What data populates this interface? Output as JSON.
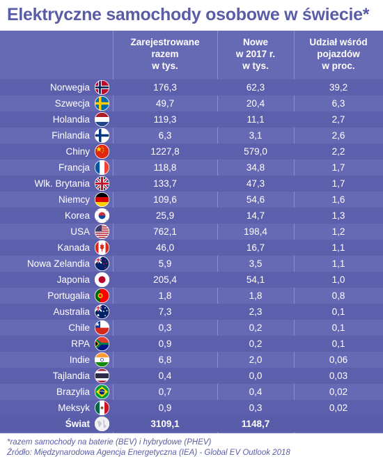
{
  "title": "Elektryczne samochody osobowe w świecie*",
  "chart_data": {
    "type": "table",
    "columns": [
      [
        "Zarejestrowane",
        "razem",
        "w tys."
      ],
      [
        "Nowe",
        "w 2017 r.",
        "w tys."
      ],
      [
        "Udział wśród",
        "pojazdów",
        "w proc."
      ]
    ],
    "rows": [
      {
        "country": "Norwegia",
        "flag": "norway-flag",
        "registered": "176,3",
        "new2017": "62,3",
        "share": "39,2"
      },
      {
        "country": "Szwecja",
        "flag": "sweden-flag",
        "registered": "49,7",
        "new2017": "20,4",
        "share": "6,3"
      },
      {
        "country": "Holandia",
        "flag": "netherlands-flag",
        "registered": "119,3",
        "new2017": "11,1",
        "share": "2,7"
      },
      {
        "country": "Finlandia",
        "flag": "finland-flag",
        "registered": "6,3",
        "new2017": "3,1",
        "share": "2,6"
      },
      {
        "country": "Chiny",
        "flag": "china-flag",
        "registered": "1227,8",
        "new2017": "579,0",
        "share": "2,2"
      },
      {
        "country": "Francja",
        "flag": "france-flag",
        "registered": "118,8",
        "new2017": "34,8",
        "share": "1,7"
      },
      {
        "country": "Wlk. Brytania",
        "flag": "uk-flag",
        "registered": "133,7",
        "new2017": "47,3",
        "share": "1,7"
      },
      {
        "country": "Niemcy",
        "flag": "germany-flag",
        "registered": "109,6",
        "new2017": "54,6",
        "share": "1,6"
      },
      {
        "country": "Korea",
        "flag": "korea-flag",
        "registered": "25,9",
        "new2017": "14,7",
        "share": "1,3"
      },
      {
        "country": "USA",
        "flag": "usa-flag",
        "registered": "762,1",
        "new2017": "198,4",
        "share": "1,2"
      },
      {
        "country": "Kanada",
        "flag": "canada-flag",
        "registered": "46,0",
        "new2017": "16,7",
        "share": "1,1"
      },
      {
        "country": "Nowa Zelandia",
        "flag": "new-zealand-flag",
        "registered": "5,9",
        "new2017": "3,5",
        "share": "1,1"
      },
      {
        "country": "Japonia",
        "flag": "japan-flag",
        "registered": "205,4",
        "new2017": "54,1",
        "share": "1,0"
      },
      {
        "country": "Portugalia",
        "flag": "portugal-flag",
        "registered": "1,8",
        "new2017": "1,8",
        "share": "0,8"
      },
      {
        "country": "Australia",
        "flag": "australia-flag",
        "registered": "7,3",
        "new2017": "2,3",
        "share": "0,1"
      },
      {
        "country": "Chile",
        "flag": "chile-flag",
        "registered": "0,3",
        "new2017": "0,2",
        "share": "0,1"
      },
      {
        "country": "RPA",
        "flag": "south-africa-flag",
        "registered": "0,9",
        "new2017": "0,2",
        "share": "0,1"
      },
      {
        "country": "Indie",
        "flag": "india-flag",
        "registered": "6,8",
        "new2017": "2,0",
        "share": "0,06"
      },
      {
        "country": "Tajlandia",
        "flag": "thailand-flag",
        "registered": "0,4",
        "new2017": "0,0",
        "share": "0,03"
      },
      {
        "country": "Brazylia",
        "flag": "brazil-flag",
        "registered": "0,7",
        "new2017": "0,4",
        "share": "0,02"
      },
      {
        "country": "Meksyk",
        "flag": "mexico-flag",
        "registered": "0,9",
        "new2017": "0,3",
        "share": "0,02"
      }
    ],
    "total": {
      "country": "Świat",
      "flag": "globe-icon",
      "registered": "3109,1",
      "new2017": "1148,7",
      "share": ""
    }
  },
  "notes": [
    "*razem samochody na baterie (BEV) i hybrydowe (PHEV)",
    "Źródło: Międzynarodowa Agencja Energetyczna (IEA) - Global EV Outlook 2018"
  ],
  "colors": {
    "title": "#5a5da6",
    "panel": "#6669b4",
    "row_alt": "#5c5fac",
    "text": "#ffffff"
  }
}
